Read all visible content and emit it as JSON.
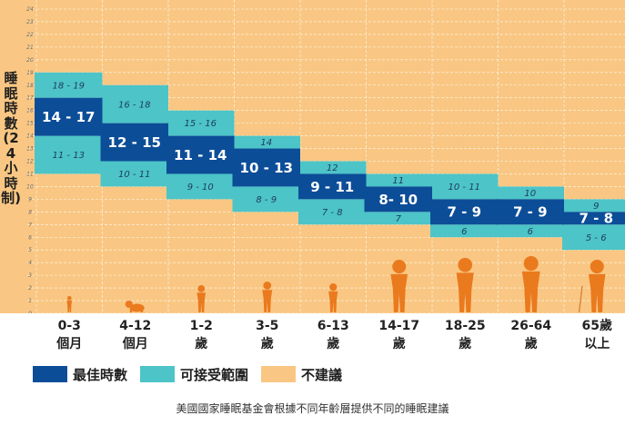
{
  "chart_data": {
    "type": "bar",
    "ylabel": "睡眠時數(24小時制)",
    "ylim": [
      0,
      24
    ],
    "yticks": [
      0,
      1,
      2,
      3,
      4,
      5,
      6,
      7,
      8,
      9,
      10,
      11,
      12,
      13,
      14,
      15,
      16,
      17,
      18,
      19,
      20,
      21,
      22,
      23,
      24
    ],
    "categories": [
      {
        "line1": "0-3",
        "line2": "個月"
      },
      {
        "line1": "4-12",
        "line2": "個月"
      },
      {
        "line1": "1-2",
        "line2": "歲"
      },
      {
        "line1": "3-5",
        "line2": "歲"
      },
      {
        "line1": "6-13",
        "line2": "歲"
      },
      {
        "line1": "14-17",
        "line2": "歲"
      },
      {
        "line1": "18-25",
        "line2": "歲"
      },
      {
        "line1": "26-64",
        "line2": "歲"
      },
      {
        "line1": "65歲",
        "line2": "以上"
      }
    ],
    "recommended": [
      {
        "low": 14,
        "high": 17,
        "label": "14 - 17"
      },
      {
        "low": 12,
        "high": 15,
        "label": "12 - 15"
      },
      {
        "low": 11,
        "high": 14,
        "label": "11 - 14"
      },
      {
        "low": 10,
        "high": 13,
        "label": "10 - 13"
      },
      {
        "low": 9,
        "high": 11,
        "label": "9 - 11"
      },
      {
        "low": 8,
        "high": 10,
        "label": "8- 10"
      },
      {
        "low": 7,
        "high": 9,
        "label": "7 - 9"
      },
      {
        "low": 7,
        "high": 9,
        "label": "7 - 9"
      },
      {
        "low": 7,
        "high": 8,
        "label": "7 - 8"
      }
    ],
    "acceptable_upper": [
      {
        "low": 17,
        "high": 19,
        "label": "18 - 19"
      },
      {
        "low": 15,
        "high": 18,
        "label": "16 - 18"
      },
      {
        "low": 14,
        "high": 16,
        "label": "15 - 16"
      },
      {
        "low": 13,
        "high": 14,
        "label": "14"
      },
      {
        "low": 11,
        "high": 12,
        "label": "12"
      },
      {
        "low": 10,
        "high": 11,
        "label": "11"
      },
      {
        "low": 9,
        "high": 11,
        "label": "10 - 11"
      },
      {
        "low": 9,
        "high": 10,
        "label": "10"
      },
      {
        "low": 8,
        "high": 9,
        "label": "9"
      }
    ],
    "acceptable_lower": [
      {
        "low": 11,
        "high": 14,
        "label": "11 - 13"
      },
      {
        "low": 10,
        "high": 12,
        "label": "10 - 11"
      },
      {
        "low": 9,
        "high": 11,
        "label": "9 - 10"
      },
      {
        "low": 8,
        "high": 10,
        "label": "8 - 9"
      },
      {
        "low": 7,
        "high": 9,
        "label": "7 - 8"
      },
      {
        "low": 7,
        "high": 8,
        "label": "7"
      },
      {
        "low": 6,
        "high": 7,
        "label": "6"
      },
      {
        "low": 6,
        "high": 7,
        "label": "6"
      },
      {
        "low": 5,
        "high": 7,
        "label": "5 - 6"
      }
    ],
    "colors": {
      "recommended": "#0c4d98",
      "acceptable": "#4cc4c8",
      "not_recommended": "#f9c783",
      "gridline": "#ffffff",
      "figure": "#ea7a1e",
      "tick_text": "#6a6a6a",
      "category_text": "#222222"
    },
    "grid": true
  },
  "legend": {
    "recommended": "最佳時數",
    "acceptable": "可接受範圍",
    "not_recommended": "不建議"
  },
  "caption": "美國國家睡眠基金會根據不同年齡層提供不同的睡眠建議",
  "figures": [
    "infant-icon",
    "crawling-baby-icon",
    "toddler-icon",
    "child-icon",
    "running-kid-icon",
    "teen-icon",
    "young-adult-icon",
    "adult-woman-icon",
    "elderly-with-cane-icon"
  ]
}
